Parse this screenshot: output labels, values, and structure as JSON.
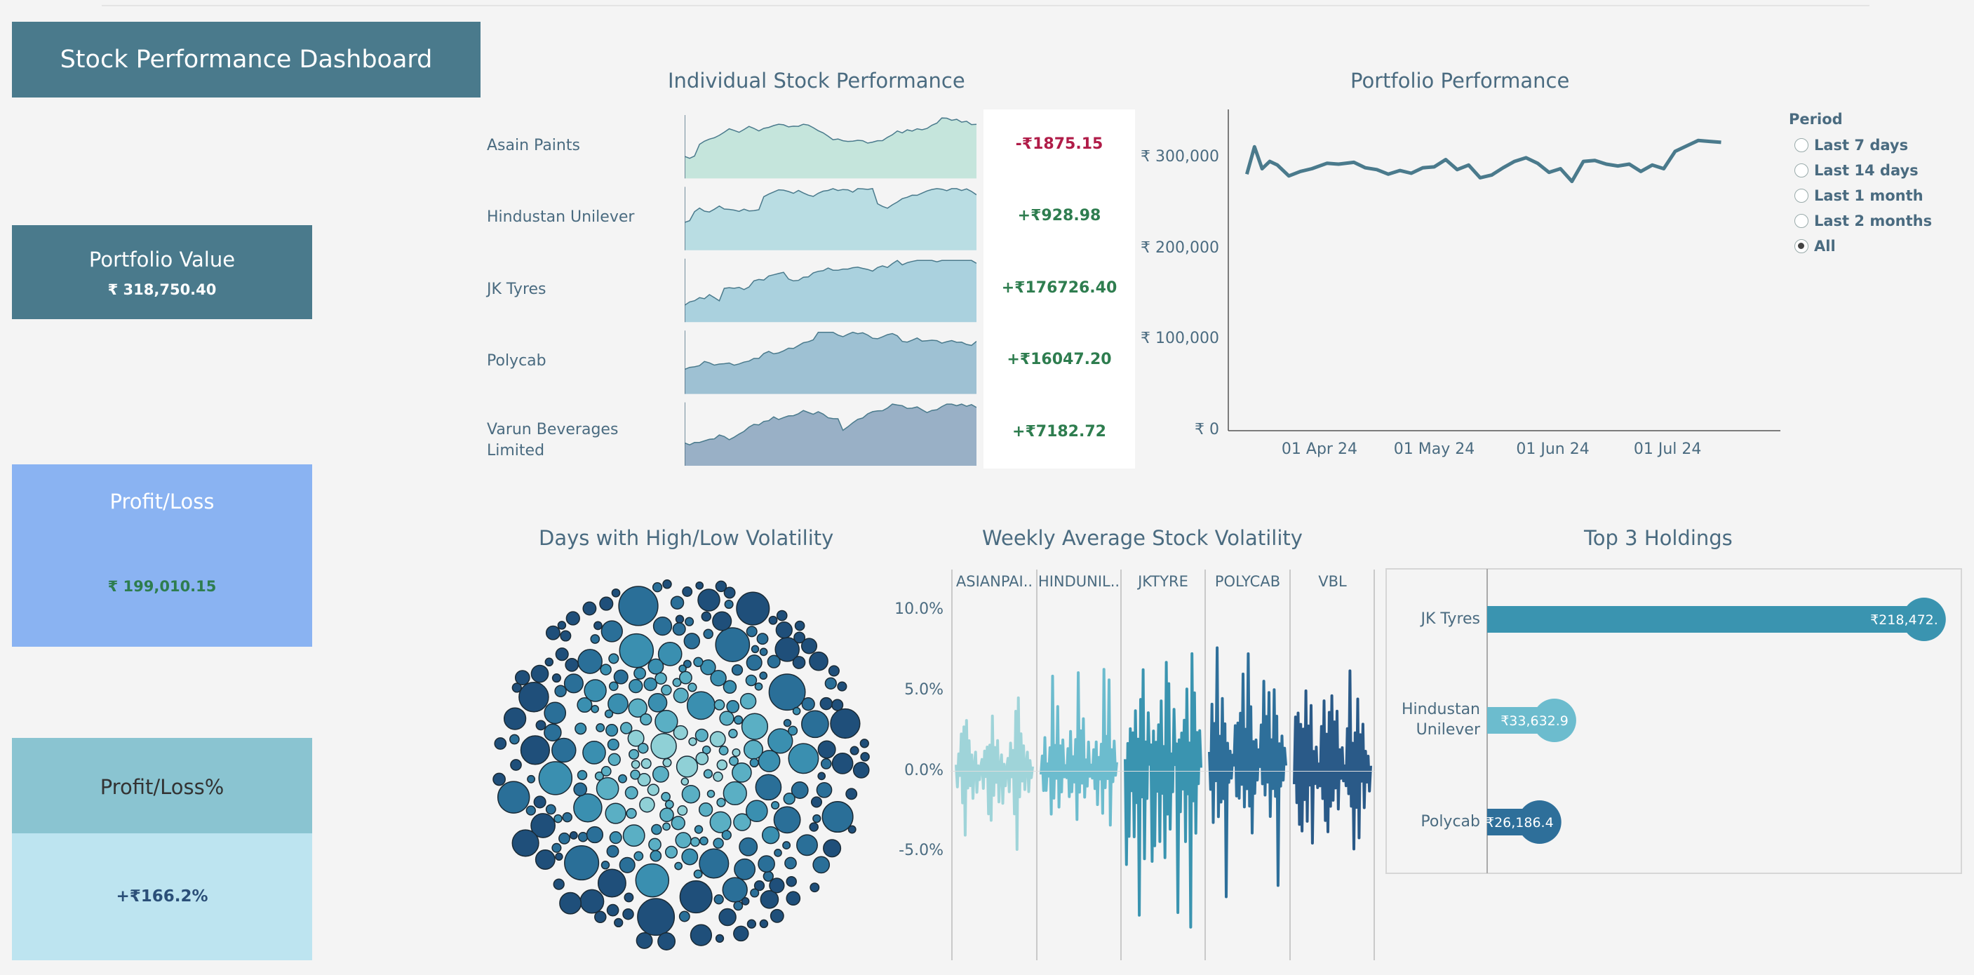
{
  "dashboard_title": "Stock Performance Dashboard",
  "kpis": {
    "portfolio_value": {
      "label": "Portfolio Value",
      "value": "₹ 318,750.40"
    },
    "profit_loss": {
      "label": "Profit/Loss",
      "value": "₹ 199,010.15"
    },
    "profit_loss_pct": {
      "label": "Profit/Loss%",
      "value": "+₹166.2%"
    }
  },
  "colors": {
    "header": "#4a7a8c",
    "profit_box": "#8ab3f2",
    "pct_top": "#8ac4d1",
    "pct_bottom": "#bde4f0",
    "positive": "#2e7d4f",
    "negative": "#b01c48",
    "line": "#4a7a8c"
  },
  "individual": {
    "title": "Individual Stock Performance",
    "stocks": [
      {
        "name": "Asain Paints",
        "pl": "-₹1875.15",
        "sign": "neg",
        "color": "#9fd9c8"
      },
      {
        "name": "Hindustan Unilever",
        "pl": "+₹928.98",
        "sign": "pos",
        "color": "#89cad6"
      },
      {
        "name": "JK Tyres",
        "pl": "+₹176726.40",
        "sign": "pos",
        "color": "#6db5cc"
      },
      {
        "name": "Polycab",
        "pl": "+₹16047.20",
        "sign": "pos",
        "color": "#5797b8"
      },
      {
        "name": "Varun Beverages Limited",
        "pl": "+₹7182.72",
        "sign": "pos",
        "color": "#4e79a0"
      }
    ]
  },
  "period_filter": {
    "title": "Period",
    "options": [
      "Last 7 days",
      "Last 14 days",
      "Last 1 month",
      "Last 2 months",
      "All"
    ],
    "selected": "All"
  },
  "chart_data": [
    {
      "type": "line",
      "title": "Portfolio Performance",
      "x_ticks": [
        "01 Apr 24",
        "01 May 24",
        "01 Jun 24",
        "01 Jul 24"
      ],
      "y_ticks": [
        "₹ 300,000",
        "₹ 200,000",
        "₹ 100,000",
        "₹ 0"
      ],
      "ylim": [
        0,
        330000
      ],
      "x": [
        "2024-03-13",
        "2024-03-15",
        "2024-03-17",
        "2024-03-19",
        "2024-03-21",
        "2024-03-24",
        "2024-03-27",
        "2024-03-30",
        "2024-04-03",
        "2024-04-06",
        "2024-04-10",
        "2024-04-13",
        "2024-04-16",
        "2024-04-19",
        "2024-04-22",
        "2024-04-25",
        "2024-04-28",
        "2024-05-01",
        "2024-05-04",
        "2024-05-07",
        "2024-05-10",
        "2024-05-13",
        "2024-05-16",
        "2024-05-19",
        "2024-05-22",
        "2024-05-25",
        "2024-05-28",
        "2024-05-31",
        "2024-06-03",
        "2024-06-06",
        "2024-06-09",
        "2024-06-12",
        "2024-06-15",
        "2024-06-18",
        "2024-06-21",
        "2024-06-24",
        "2024-06-27",
        "2024-06-30",
        "2024-07-03",
        "2024-07-06",
        "2024-07-09",
        "2024-07-12",
        "2024-07-15"
      ],
      "values": [
        282000,
        312000,
        288000,
        296000,
        292000,
        280000,
        285000,
        288000,
        294000,
        293000,
        295000,
        289000,
        287000,
        282000,
        286000,
        283000,
        289000,
        290000,
        298000,
        287000,
        292000,
        278000,
        281000,
        289000,
        296000,
        300000,
        294000,
        284000,
        288000,
        274000,
        296000,
        297000,
        293000,
        291000,
        293000,
        285000,
        292000,
        288000,
        307000,
        313000,
        319000,
        318000,
        317000
      ]
    },
    {
      "type": "scatter",
      "title": "Days with High/Low Volatility"
    },
    {
      "type": "line",
      "title": "Weekly Average Stock Volatility",
      "panels": [
        "ASIANPAI..",
        "HINDUNIL..",
        "JKTYRE",
        "POLYCAB",
        "VBL"
      ],
      "y_ticks": [
        "10.0%",
        "5.0%",
        "0.0%",
        "-5.0%"
      ],
      "ylim": [
        -9.3,
        11
      ],
      "series": [
        {
          "name": "ASIANPAI..",
          "values": [
            0.8,
            -1.2,
            1.5,
            -0.5,
            2.1,
            -2.5,
            3.2,
            -4.8,
            3.8,
            -1.5,
            2.9,
            -0.9,
            1.7,
            -2.2,
            0.4,
            1.1,
            -1.7,
            0.6,
            -0.8,
            0.3
          ]
        },
        {
          "name": "HINDUNIL..",
          "values": [
            -0.4,
            1.2,
            -1.6,
            2.8,
            -2.1,
            0.9,
            -0.6,
            1.8,
            -3.2,
            5.5,
            -1.9,
            2.4,
            -0.7,
            6.2,
            -2.8,
            1.4,
            -1.1,
            2.3,
            -0.4,
            0.5
          ]
        },
        {
          "name": "JKTYRE",
          "values": [
            1.5,
            -7.5,
            2.2,
            -4.2,
            3.6,
            -1.3,
            2.8,
            -5.1,
            4.5,
            -2.6,
            1.8,
            -8.6,
            6.8,
            -3.0,
            9.3,
            -4.6,
            2.1,
            -1.5,
            3.3,
            0.4
          ]
        },
        {
          "name": "POLYCAB",
          "values": [
            2.4,
            -1.5,
            5.1,
            -2.7,
            3.3,
            -0.9,
            6.4,
            -3.6,
            2.6,
            -1.7,
            7.1,
            -2.4,
            4.3,
            -7.0,
            3.1,
            -1.3,
            2.2,
            -0.6,
            1.6,
            0.5
          ]
        },
        {
          "name": "VBL",
          "values": [
            -1.6,
            4.6,
            -2.3,
            5.2,
            -3.1,
            2.7,
            -4.4,
            3.4,
            -2.1,
            6.2,
            -3.6,
            2.6,
            -1.2,
            4.1,
            -3.9,
            2.1,
            -0.8,
            1.5,
            -1.2,
            0.4
          ]
        }
      ]
    },
    {
      "type": "bar",
      "title": "Top 3 Holdings",
      "categories": [
        "JK Tyres",
        "Hindustan Unilever",
        "Polycab"
      ],
      "values": [
        218472,
        33632.9,
        26186.4
      ],
      "labels": [
        "₹218,472.",
        "₹33,632.9",
        "₹26,186.4"
      ],
      "colors": [
        "#3a94b0",
        "#6cbcce",
        "#2e6f9a"
      ]
    }
  ]
}
